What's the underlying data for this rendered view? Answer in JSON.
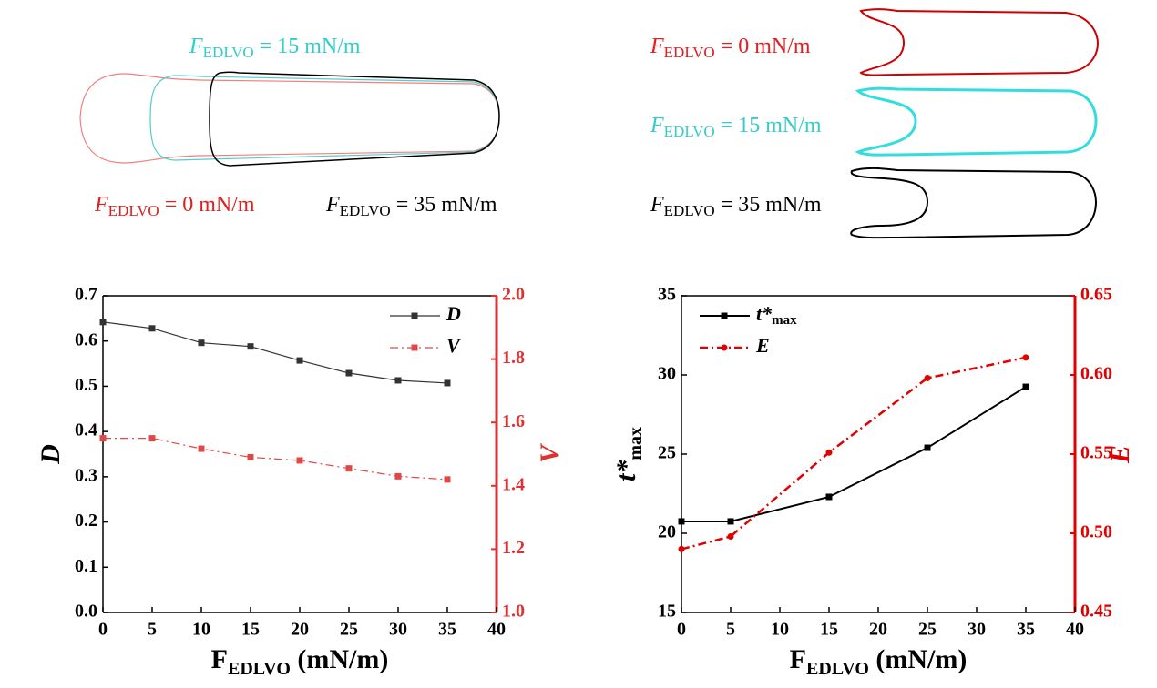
{
  "diagrams": [
    {
      "labels": [
        {
          "symbol": "F",
          "sub": "EDLVO",
          "rest": " = 15 mN/m",
          "color": "#33cccc"
        },
        {
          "symbol": "F",
          "sub": "EDLVO",
          "rest": " = 0 mN/m",
          "color": "#e02020"
        },
        {
          "symbol": "F",
          "sub": "EDLVO",
          "rest": " = 35 mN/m",
          "color": "#000000"
        }
      ]
    },
    {
      "labels": [
        {
          "symbol": "F",
          "sub": "EDLVO",
          "rest": " = 0 mN/m",
          "color": "#e02020"
        },
        {
          "symbol": "F",
          "sub": "EDLVO",
          "rest": " = 15 mN/m",
          "color": "#33cccc"
        },
        {
          "symbol": "F",
          "sub": "EDLVO",
          "rest": " = 35 mN/m",
          "color": "#000000"
        }
      ]
    }
  ],
  "chart_data": [
    {
      "type": "line",
      "xlabel": {
        "main": "F",
        "sub": "EDLVO",
        "rest": " (mN/m)"
      },
      "ylabel": {
        "main": "D"
      },
      "y2label": {
        "main": "V"
      },
      "y2_color": "#e03030",
      "x": [
        0,
        5,
        10,
        15,
        20,
        25,
        30,
        35
      ],
      "xlim": [
        0,
        40
      ],
      "xticks": [
        0,
        5,
        10,
        15,
        20,
        25,
        30,
        35,
        40
      ],
      "ylim": [
        0,
        0.7
      ],
      "yticks": [
        {
          "value": 0,
          "label": "0.0"
        },
        0.1,
        0.2,
        0.3,
        0.4,
        0.5,
        0.6,
        0.7
      ],
      "y2lim": [
        1.0,
        2.0
      ],
      "y2ticks": [
        {
          "value": 1.0,
          "label": "1.0"
        },
        1.2,
        1.4,
        1.6,
        1.8,
        {
          "value": 2.0,
          "label": "2.0"
        }
      ],
      "legend": "upper right",
      "series": [
        {
          "name": "D",
          "color": "#333333",
          "marker": "square",
          "dash": "solid",
          "width": 1.2,
          "values": [
            0.642,
            0.628,
            0.596,
            0.588,
            0.557,
            0.529,
            0.513,
            0.507
          ]
        },
        {
          "name": "V",
          "color": "#e04848",
          "marker": "square",
          "dash": "dashdot",
          "width": 1.2,
          "axis": "y2",
          "values": [
            1.55,
            1.55,
            1.517,
            1.49,
            1.48,
            1.455,
            1.43,
            1.42
          ]
        }
      ]
    },
    {
      "type": "line",
      "xlabel": {
        "main": "F",
        "sub": "EDLVO",
        "rest": " (mN/m)"
      },
      "ylabel": {
        "main": "t*",
        "sub": "max"
      },
      "y2label": {
        "main": "E"
      },
      "y2_color": "#e00000",
      "x": [
        0,
        5,
        15,
        25,
        35
      ],
      "xlim": [
        0,
        40
      ],
      "xticks": [
        0,
        5,
        10,
        15,
        20,
        25,
        30,
        35,
        40
      ],
      "ylim": [
        15,
        35
      ],
      "yticks": [
        15,
        20,
        25,
        30,
        35
      ],
      "y2lim": [
        0.45,
        0.65
      ],
      "y2ticks": [
        0.45,
        {
          "value": 0.5,
          "label": "0.50"
        },
        0.55,
        {
          "value": 0.6,
          "label": "0.60"
        },
        0.65
      ],
      "legend": "upper left",
      "series": [
        {
          "name": "t*",
          "name_sub": "max",
          "color": "#000000",
          "marker": "square",
          "dash": "solid",
          "width": 2,
          "values": [
            20.75,
            20.75,
            22.3,
            25.4,
            29.25
          ]
        },
        {
          "name": "E",
          "color": "#e00000",
          "marker": "circle",
          "dash": "dashdot",
          "width": 2.5,
          "axis": "y2",
          "values": [
            0.49,
            0.498,
            0.551,
            0.598,
            0.611
          ]
        }
      ]
    }
  ]
}
